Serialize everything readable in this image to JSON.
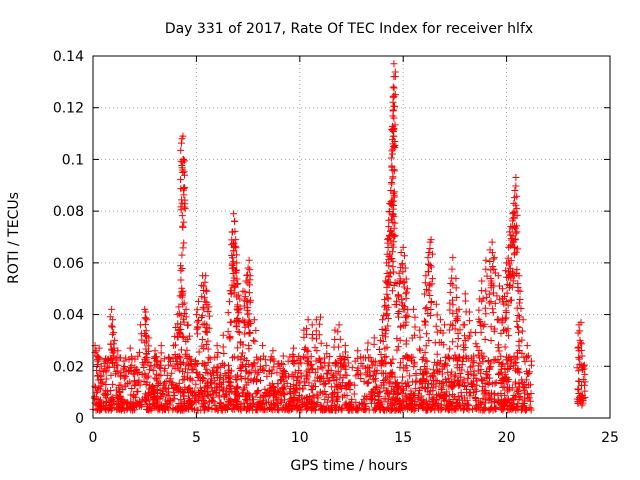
{
  "chart_data": {
    "type": "scatter",
    "title": "Day 331 of 2017, Rate Of TEC Index for receiver hlfx",
    "xlabel": "GPS time / hours",
    "ylabel": "ROTI / TECUs",
    "xlim": [
      0,
      25
    ],
    "ylim": [
      0,
      0.14
    ],
    "x_ticks": [
      0,
      5,
      10,
      15,
      20,
      25
    ],
    "x_tick_labels": [
      "0",
      "5",
      "10",
      "15",
      "20",
      "25"
    ],
    "y_ticks": [
      0,
      0.02,
      0.04,
      0.06,
      0.08,
      0.1,
      0.12,
      0.14
    ],
    "y_tick_labels": [
      "0",
      "0.02",
      "0.04",
      "0.06",
      "0.08",
      "0.1",
      "0.12",
      "0.14"
    ],
    "grid": true,
    "marker": "+",
    "color": "#ff0000",
    "series": [
      {
        "name": "ROTI",
        "points": [
          [
            0.1,
            0.028
          ],
          [
            0.15,
            0.026
          ],
          [
            0.2,
            0.024
          ],
          [
            0.25,
            0.022
          ],
          [
            0.3,
            0.027
          ],
          [
            0.4,
            0.02
          ],
          [
            0.5,
            0.018
          ],
          [
            0.9,
            0.042
          ],
          [
            0.95,
            0.038
          ],
          [
            1.0,
            0.033
          ],
          [
            1.05,
            0.03
          ],
          [
            1.2,
            0.026
          ],
          [
            1.5,
            0.022
          ],
          [
            1.8,
            0.027
          ],
          [
            2.3,
            0.036
          ],
          [
            2.5,
            0.042
          ],
          [
            2.55,
            0.041
          ],
          [
            2.6,
            0.038
          ],
          [
            2.7,
            0.031
          ],
          [
            3.0,
            0.026
          ],
          [
            3.3,
            0.028
          ],
          [
            3.9,
            0.028
          ],
          [
            4.0,
            0.035
          ],
          [
            4.1,
            0.04
          ],
          [
            4.15,
            0.043
          ],
          [
            4.25,
            0.057
          ],
          [
            4.3,
            0.063
          ],
          [
            4.35,
            0.049
          ],
          [
            4.3,
            0.108
          ],
          [
            4.35,
            0.109
          ],
          [
            4.38,
            0.1
          ],
          [
            4.42,
            0.0995
          ],
          [
            4.5,
            0.042
          ],
          [
            4.6,
            0.036
          ],
          [
            5.0,
            0.04
          ],
          [
            5.1,
            0.045
          ],
          [
            5.3,
            0.055
          ],
          [
            5.35,
            0.051
          ],
          [
            5.45,
            0.055
          ],
          [
            5.5,
            0.049
          ],
          [
            5.6,
            0.043
          ],
          [
            6.0,
            0.028
          ],
          [
            6.3,
            0.032
          ],
          [
            6.6,
            0.045
          ],
          [
            6.7,
            0.067
          ],
          [
            6.75,
            0.072
          ],
          [
            6.8,
            0.079
          ],
          [
            6.85,
            0.076
          ],
          [
            6.9,
            0.069
          ],
          [
            6.95,
            0.06
          ],
          [
            7.0,
            0.052
          ],
          [
            7.1,
            0.046
          ],
          [
            7.25,
            0.049
          ],
          [
            7.4,
            0.053
          ],
          [
            7.5,
            0.058
          ],
          [
            7.55,
            0.061
          ],
          [
            7.6,
            0.055
          ],
          [
            7.8,
            0.038
          ],
          [
            8.2,
            0.028
          ],
          [
            8.7,
            0.026
          ],
          [
            9.2,
            0.024
          ],
          [
            9.7,
            0.027
          ],
          [
            10.2,
            0.034
          ],
          [
            10.4,
            0.038
          ],
          [
            10.6,
            0.036
          ],
          [
            10.8,
            0.038
          ],
          [
            11.0,
            0.039
          ],
          [
            11.3,
            0.028
          ],
          [
            11.7,
            0.034
          ],
          [
            11.9,
            0.036
          ],
          [
            12.2,
            0.028
          ],
          [
            12.8,
            0.026
          ],
          [
            13.3,
            0.029
          ],
          [
            13.6,
            0.031
          ],
          [
            13.9,
            0.03
          ],
          [
            14.0,
            0.038
          ],
          [
            14.1,
            0.043
          ],
          [
            14.15,
            0.053
          ],
          [
            14.2,
            0.06
          ],
          [
            14.25,
            0.069
          ],
          [
            14.3,
            0.074
          ],
          [
            14.35,
            0.083
          ],
          [
            14.4,
            0.088
          ],
          [
            14.45,
            0.097
          ],
          [
            14.5,
            0.079
          ],
          [
            14.55,
            0.078
          ],
          [
            14.5,
            0.104
          ],
          [
            14.52,
            0.109
          ],
          [
            14.55,
            0.116
          ],
          [
            14.52,
            0.128
          ],
          [
            14.55,
            0.132
          ],
          [
            14.55,
            0.137
          ],
          [
            14.7,
            0.052
          ],
          [
            14.8,
            0.056
          ],
          [
            14.9,
            0.064
          ],
          [
            15.0,
            0.066
          ],
          [
            15.1,
            0.058
          ],
          [
            15.2,
            0.05
          ],
          [
            15.5,
            0.042
          ],
          [
            15.8,
            0.034
          ],
          [
            16.1,
            0.055
          ],
          [
            16.2,
            0.062
          ],
          [
            16.3,
            0.068
          ],
          [
            16.35,
            0.069
          ],
          [
            16.6,
            0.044
          ],
          [
            16.8,
            0.038
          ],
          [
            17.0,
            0.036
          ],
          [
            17.3,
            0.052
          ],
          [
            17.4,
            0.062
          ],
          [
            17.55,
            0.054
          ],
          [
            17.7,
            0.042
          ],
          [
            17.9,
            0.036
          ],
          [
            18.0,
            0.048
          ],
          [
            18.2,
            0.041
          ],
          [
            18.5,
            0.033
          ],
          [
            18.7,
            0.046
          ],
          [
            18.8,
            0.053
          ],
          [
            19.0,
            0.061
          ],
          [
            19.2,
            0.065
          ],
          [
            19.3,
            0.068
          ],
          [
            19.4,
            0.062
          ],
          [
            19.6,
            0.055
          ],
          [
            19.8,
            0.05
          ],
          [
            19.9,
            0.047
          ],
          [
            20.0,
            0.06
          ],
          [
            20.1,
            0.066
          ],
          [
            20.15,
            0.072
          ],
          [
            20.2,
            0.074
          ],
          [
            20.3,
            0.079
          ],
          [
            20.35,
            0.083
          ],
          [
            20.4,
            0.088
          ],
          [
            20.45,
            0.093
          ],
          [
            20.5,
            0.072
          ],
          [
            20.6,
            0.055
          ],
          [
            20.65,
            0.049
          ],
          [
            20.8,
            0.038
          ],
          [
            21.0,
            0.028
          ],
          [
            21.2,
            0.022
          ],
          [
            23.5,
            0.036
          ],
          [
            23.6,
            0.037
          ],
          [
            23.55,
            0.03
          ],
          [
            23.5,
            0.026
          ],
          [
            23.65,
            0.024
          ]
        ]
      }
    ],
    "dense_band": {
      "segments": [
        {
          "from": 0.0,
          "to": 21.2,
          "low": 0.003,
          "high": 0.024
        },
        {
          "from": 23.4,
          "to": 23.8,
          "low": 0.005,
          "high": 0.021
        }
      ]
    }
  }
}
